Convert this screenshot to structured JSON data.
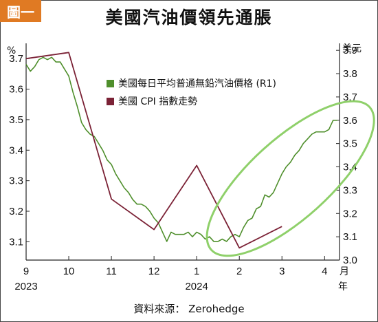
{
  "badge": "圖一",
  "title": "美國汽油價領先通脹",
  "source": "資料來源： Zerohedge",
  "chart_data": {
    "type": "line",
    "title": "美國汽油價領先通脹",
    "left_axis": {
      "unit": "%",
      "ticks": [
        3.1,
        3.2,
        3.3,
        3.4,
        3.5,
        3.6,
        3.7
      ],
      "range": [
        3.04,
        3.75
      ]
    },
    "right_axis": {
      "unit": "美元",
      "ticks": [
        3.0,
        3.1,
        3.2,
        3.3,
        3.4,
        3.5,
        3.6,
        3.7,
        3.8,
        3.9
      ],
      "range": [
        3.0,
        3.93
      ]
    },
    "x_axis": {
      "unit_top": "月",
      "unit_bottom": "年",
      "months": [
        9,
        10,
        11,
        12,
        1,
        2,
        3,
        4
      ],
      "month_labels": [
        "9",
        "10",
        "11",
        "12",
        "1",
        "2",
        "3",
        "4"
      ],
      "year_labels": [
        {
          "label": "2023",
          "at": 9
        },
        {
          "label": "2024",
          "at": 13
        }
      ],
      "range": [
        9,
        16.35
      ]
    },
    "series": [
      {
        "name": "美國每日平均普通無鉛汽油價格 (R1)",
        "axis": "right",
        "color": "#4f8f2c",
        "x": [
          9.0,
          9.1,
          9.2,
          9.3,
          9.4,
          9.5,
          9.6,
          9.7,
          9.8,
          9.9,
          10.0,
          10.1,
          10.2,
          10.3,
          10.4,
          10.5,
          10.6,
          10.7,
          10.8,
          10.9,
          11.0,
          11.1,
          11.2,
          11.3,
          11.4,
          11.5,
          11.6,
          11.7,
          11.8,
          11.9,
          12.0,
          12.1,
          12.2,
          12.3,
          12.4,
          12.5,
          12.6,
          12.7,
          12.8,
          12.9,
          13.0,
          13.1,
          13.2,
          13.3,
          13.4,
          13.5,
          13.6,
          13.7,
          13.8,
          13.9,
          14.0,
          14.1,
          14.2,
          14.3,
          14.4,
          14.5,
          14.6,
          14.7,
          14.8,
          14.9,
          15.0,
          15.1,
          15.2,
          15.3,
          15.4,
          15.5,
          15.6,
          15.7,
          15.8,
          15.9,
          16.0,
          16.1,
          16.2,
          16.3
        ],
        "values": [
          3.84,
          3.81,
          3.83,
          3.86,
          3.87,
          3.86,
          3.87,
          3.85,
          3.85,
          3.82,
          3.79,
          3.72,
          3.66,
          3.59,
          3.56,
          3.54,
          3.53,
          3.5,
          3.47,
          3.43,
          3.41,
          3.37,
          3.34,
          3.31,
          3.29,
          3.26,
          3.24,
          3.24,
          3.23,
          3.21,
          3.18,
          3.16,
          3.12,
          3.08,
          3.12,
          3.11,
          3.11,
          3.11,
          3.12,
          3.1,
          3.12,
          3.11,
          3.09,
          3.1,
          3.08,
          3.08,
          3.09,
          3.08,
          3.1,
          3.11,
          3.1,
          3.14,
          3.17,
          3.18,
          3.22,
          3.23,
          3.28,
          3.27,
          3.29,
          3.33,
          3.37,
          3.4,
          3.42,
          3.45,
          3.47,
          3.5,
          3.52,
          3.54,
          3.55,
          3.55,
          3.55,
          3.56,
          3.6,
          3.6
        ]
      },
      {
        "name": "美國 CPI 指數走勢",
        "axis": "left",
        "color": "#7b2236",
        "x": [
          9,
          10,
          11,
          12,
          13,
          14,
          15
        ],
        "values": [
          3.7,
          3.72,
          3.24,
          3.14,
          3.35,
          3.08,
          3.15
        ]
      }
    ],
    "legend": {
      "position": "upper-center"
    },
    "annotation": {
      "type": "ellipse",
      "color": "#8fd06a",
      "around": "gasoline price rise Feb–Apr 2024"
    },
    "grid": false
  }
}
